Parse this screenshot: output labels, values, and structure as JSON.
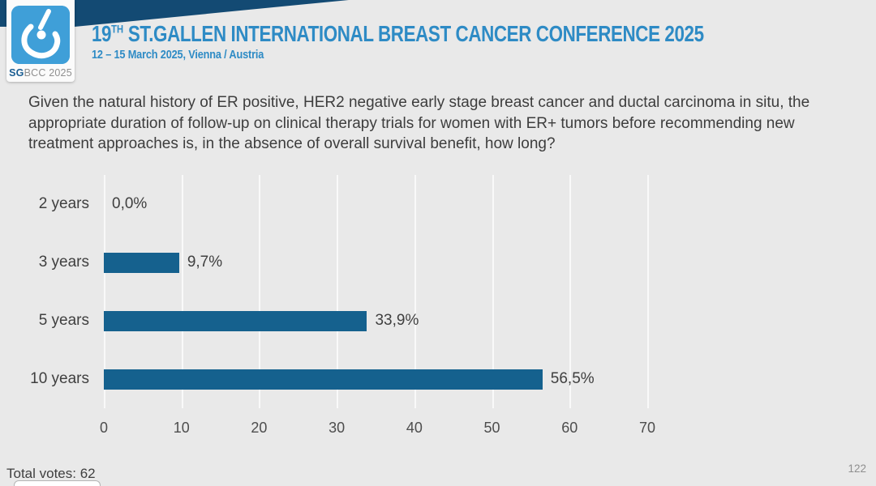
{
  "header": {
    "logo_sg": "SG",
    "logo_rest": "BCC 2025",
    "title_prefix": "19",
    "title_sup": "TH",
    "title_rest": " ST.GALLEN INTERNATIONAL BREAST CANCER CONFERENCE 2025",
    "subtitle": "12 – 15 March 2025, Vienna / Austria"
  },
  "question": "Given the natural history of ER positive, HER2 negative early stage breast cancer and ductal carcinoma in situ, the appropriate duration of follow-up on clinical therapy trials for women with ER+ tumors before recommending new treatment approaches is, in the absence of overall survival benefit, how long?",
  "chart_data": {
    "type": "bar",
    "orientation": "horizontal",
    "title": "",
    "categories": [
      "2 years",
      "3 years",
      "5 years",
      "10 years"
    ],
    "values": [
      0.0,
      9.7,
      33.9,
      56.5
    ],
    "value_labels": [
      "0,0%",
      "9,7%",
      "33,9%",
      "56,5%"
    ],
    "xlim": [
      0,
      70
    ],
    "x_ticks": [
      "0",
      "10",
      "20",
      "30",
      "40",
      "50",
      "60",
      "70"
    ],
    "grid": true,
    "legend": false,
    "bar_color": "#15618e"
  },
  "footer": {
    "total_votes": "Total votes: 62",
    "page_number": "122"
  },
  "colors": {
    "slide_background": "#e9e9e9",
    "banner_navy": "#134a73",
    "title_blue": "#2e8bc5",
    "logo_blue": "#3f9fd8",
    "bar_blue": "#15618e",
    "text_dark": "#3d3d3d",
    "text_gray": "#8f8f8f"
  }
}
